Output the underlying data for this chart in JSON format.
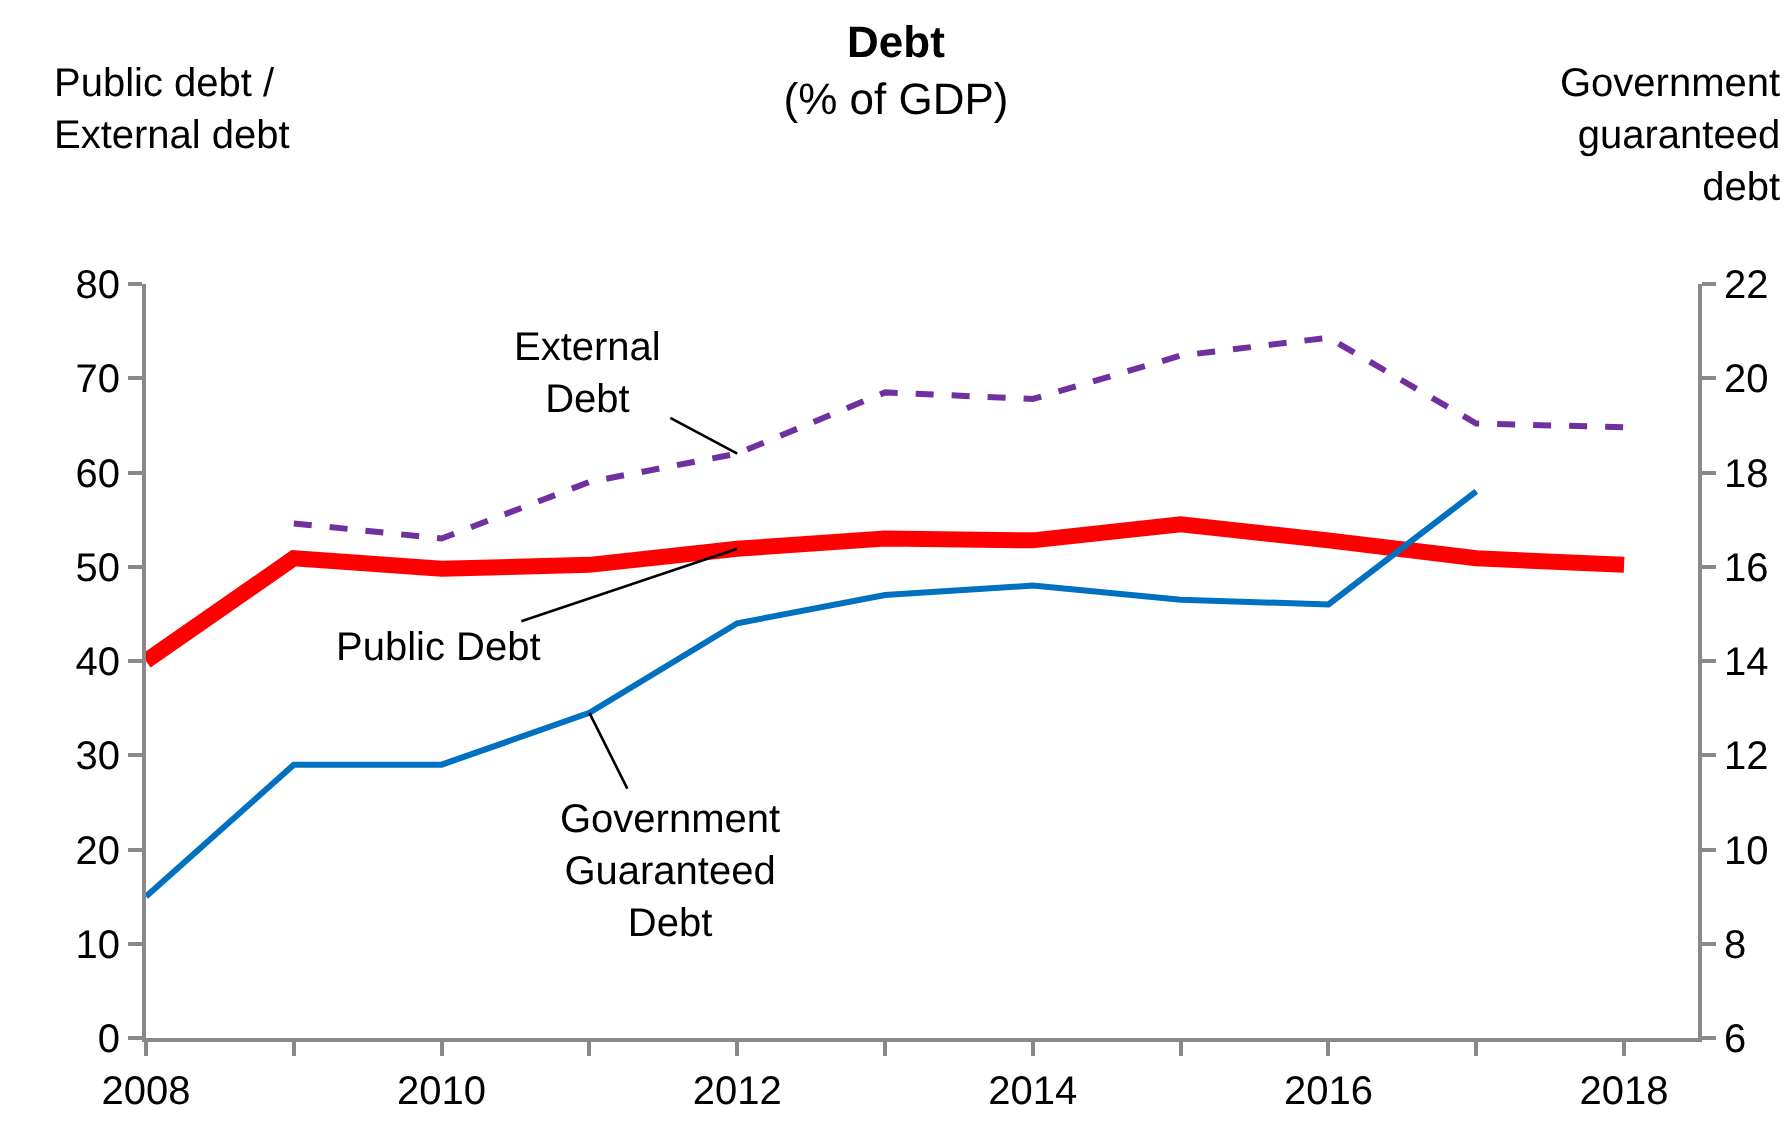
{
  "chart_data": {
    "type": "line",
    "title": "Debt",
    "subtitle": "(% of GDP)",
    "ylabel": "Public debt / External debt",
    "y2label": "Government guaranteed debt",
    "x": [
      2008,
      2009,
      2010,
      2011,
      2012,
      2013,
      2014,
      2015,
      2016,
      2017,
      2018
    ],
    "series": [
      {
        "name": "External Debt",
        "color": "#7030a0",
        "line_style": "dashed",
        "values": [
          null,
          54.6,
          53,
          59,
          62,
          68.5,
          67.8,
          72.4,
          74.3,
          65.2,
          64.8
        ]
      },
      {
        "name": "Public Debt",
        "color": "#ff0000",
        "line_style": "solid",
        "values": [
          40,
          50.9,
          49.8,
          50.2,
          51.9,
          53,
          52.8,
          54.5,
          52.8,
          50.9,
          50.2
        ]
      },
      {
        "name": "Government Guaranteed Debt",
        "color": "#0070c0",
        "line_style": "solid",
        "axis": "y2",
        "values": [
          9,
          11.8,
          11.8,
          12.9,
          14.8,
          15.4,
          15.6,
          15.3,
          15.2,
          17.6,
          null
        ]
      }
    ],
    "xlim": [
      2008,
      2018.5
    ],
    "xticks": [
      2008,
      {
        "value": 2009,
        "label": null
      },
      2010,
      {
        "value": 2011,
        "label": null
      },
      2012,
      {
        "value": 2013,
        "label": null
      },
      2014,
      {
        "value": 2015,
        "label": null
      },
      2016,
      {
        "value": 2017,
        "label": null
      },
      2018
    ],
    "ylim": [
      0,
      80
    ],
    "yticks": [
      0,
      10,
      20,
      30,
      40,
      50,
      60,
      70,
      80
    ],
    "y2lim": [
      6,
      22
    ],
    "y2ticks": [
      6,
      8,
      10,
      12,
      14,
      16,
      18,
      20,
      22
    ],
    "legend": false,
    "marker": "none"
  }
}
